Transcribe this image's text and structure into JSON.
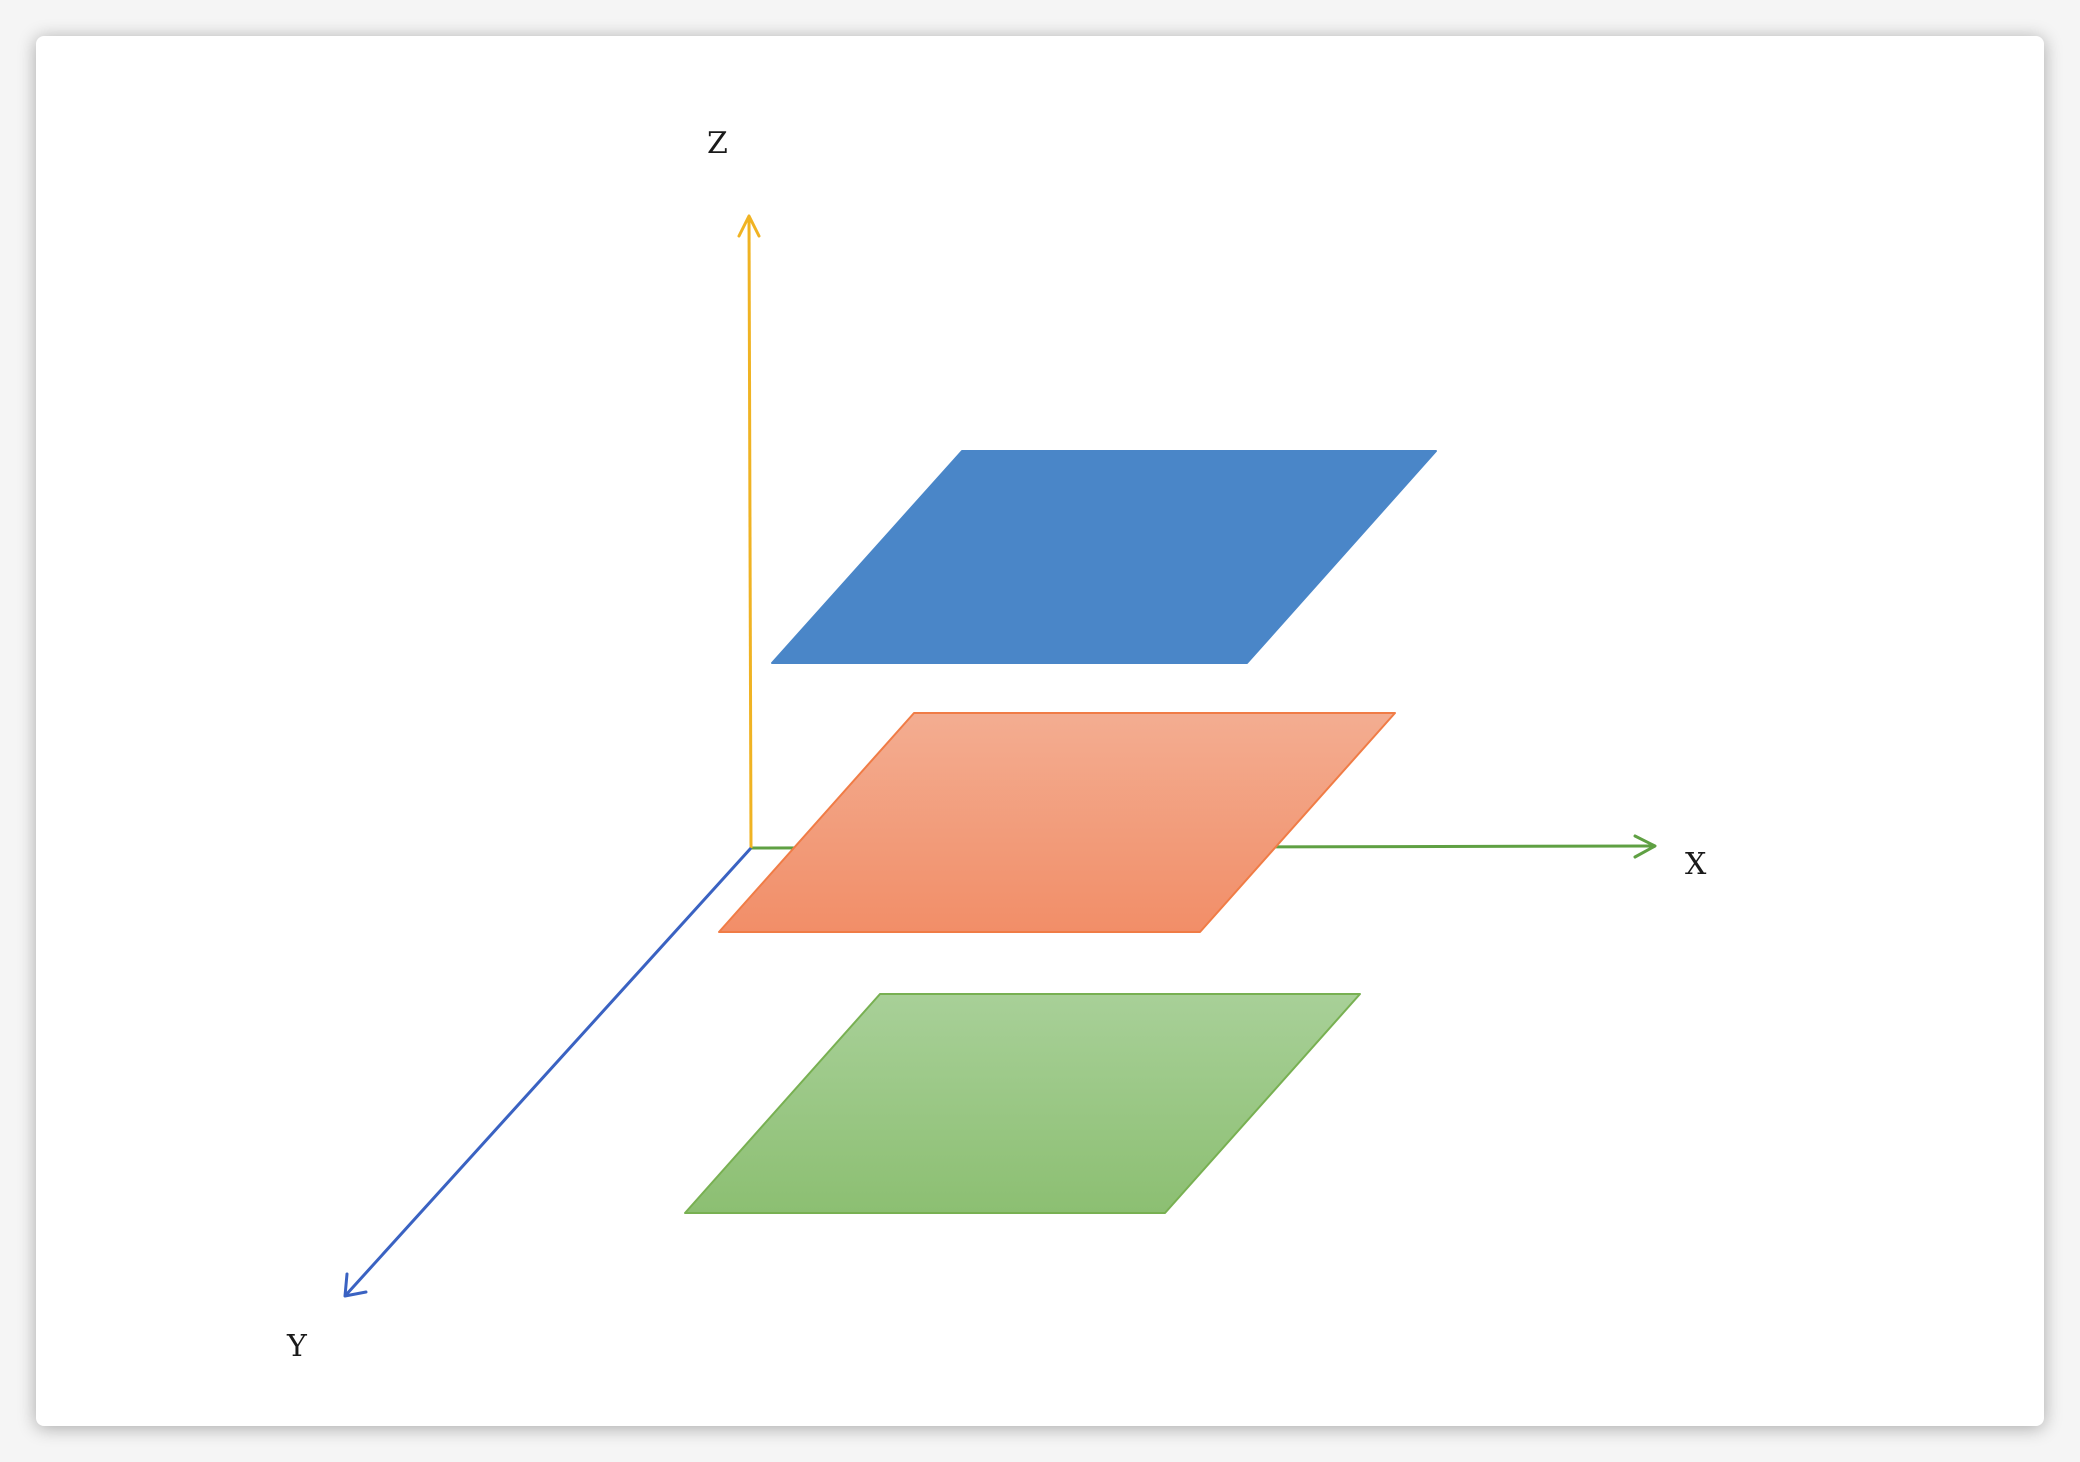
{
  "axes": {
    "x": {
      "label": "X",
      "color": "#5fa043"
    },
    "y": {
      "label": "Y",
      "color": "#3a62c2"
    },
    "z": {
      "label": "Z",
      "color": "#f0b323"
    }
  },
  "planes": [
    {
      "id": "top",
      "fill": "#4a86c8",
      "stroke": "#4a86c8"
    },
    {
      "id": "middle",
      "fill_top": "#f3ad91",
      "fill_bottom": "#f28e68",
      "stroke": "#f07c46"
    },
    {
      "id": "bottom",
      "fill_top": "#a8d098",
      "fill_bottom": "#8cbf72",
      "stroke": "#78b052"
    }
  ]
}
